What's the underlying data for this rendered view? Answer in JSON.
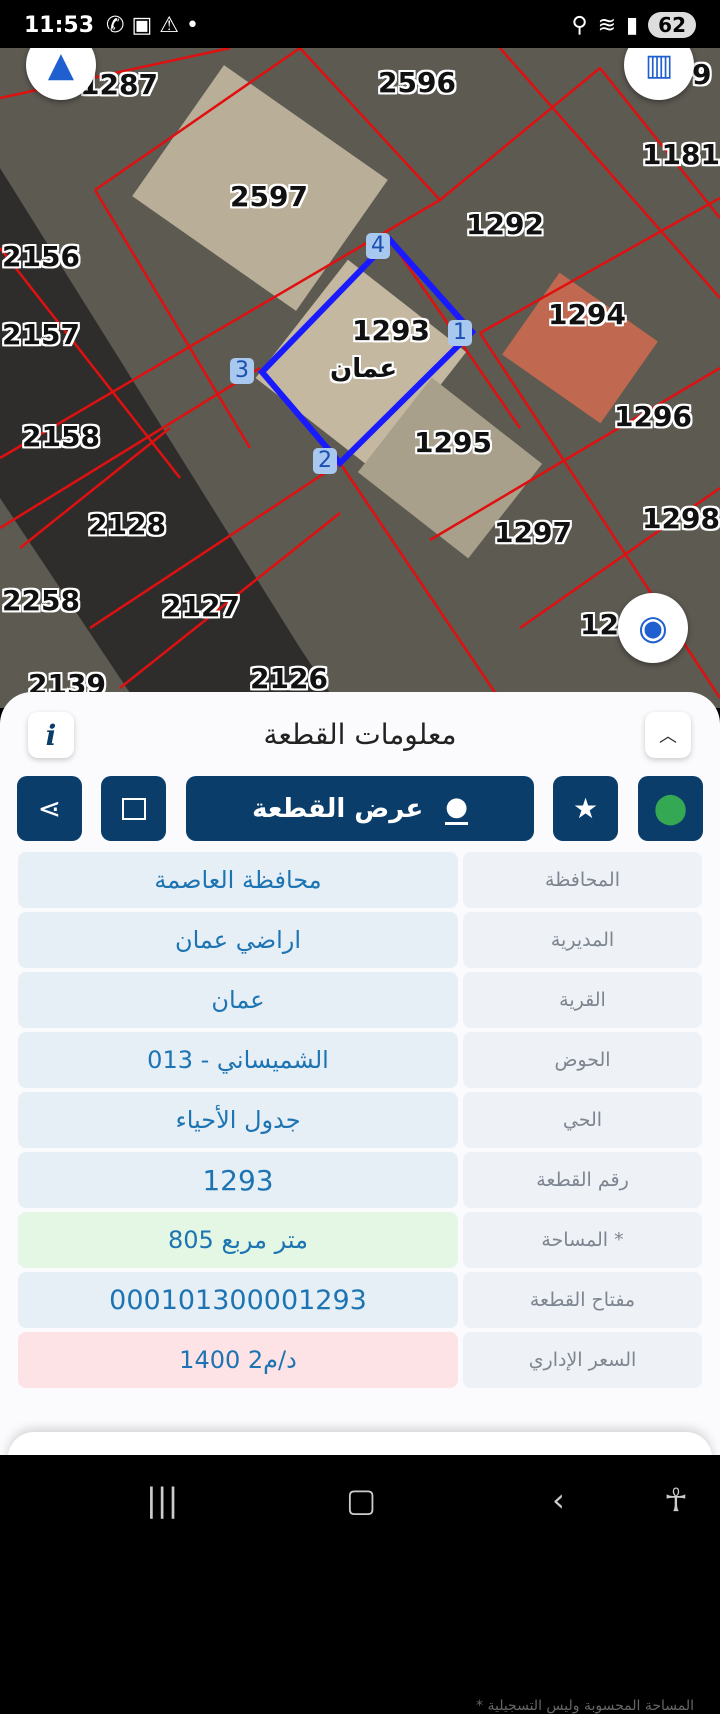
{
  "status_bar": {
    "time": "11:53",
    "battery": "62"
  },
  "map": {
    "parcel_labels": [
      "1287",
      "2596",
      "9",
      "1181",
      "2597",
      "1292",
      "2156",
      "1294",
      "2157",
      "1293",
      "1296",
      "2158",
      "1295",
      "2128",
      "1297",
      "1298",
      "2258",
      "2127",
      "12",
      "2139",
      "2126"
    ],
    "selected_parcel_name": "عمان",
    "vertices": [
      "1",
      "2",
      "3",
      "4"
    ],
    "icons": {
      "north": "navigation-arrow-icon",
      "layers": "map-layers-icon",
      "locate": "gps-target-icon"
    }
  },
  "sheet": {
    "title": "معلومات القطعة",
    "info_icon": "i",
    "show_parcel_label": "عرض القطعة",
    "rows": [
      {
        "label": "المحافظة",
        "value": "محافظة العاصمة"
      },
      {
        "label": "المديرية",
        "value": "اراضي عمان"
      },
      {
        "label": "القرية",
        "value": "عمان"
      },
      {
        "label": "الحوض",
        "value": "الشميساني - 013"
      },
      {
        "label": "الحي",
        "value": "جدول الأحياء"
      },
      {
        "label": "رقم القطعة",
        "value": "1293"
      },
      {
        "label": "المساحة *",
        "value": "805  متر مربع"
      },
      {
        "label": "مفتاح القطعة",
        "value": "000101300001293"
      },
      {
        "label": "السعر الإداري",
        "value": "1400 د/م2"
      }
    ],
    "footnote": "* المساحة المحسوبة وليس التسجيلية",
    "colors": {
      "primary": "#0b3d6b",
      "value_text": "#1c74b3",
      "area_bg": "#e4f6e4",
      "price_bg": "#fde3e6",
      "selected_outline": "#1a1aff",
      "parcel_lines": "#e01010"
    }
  }
}
